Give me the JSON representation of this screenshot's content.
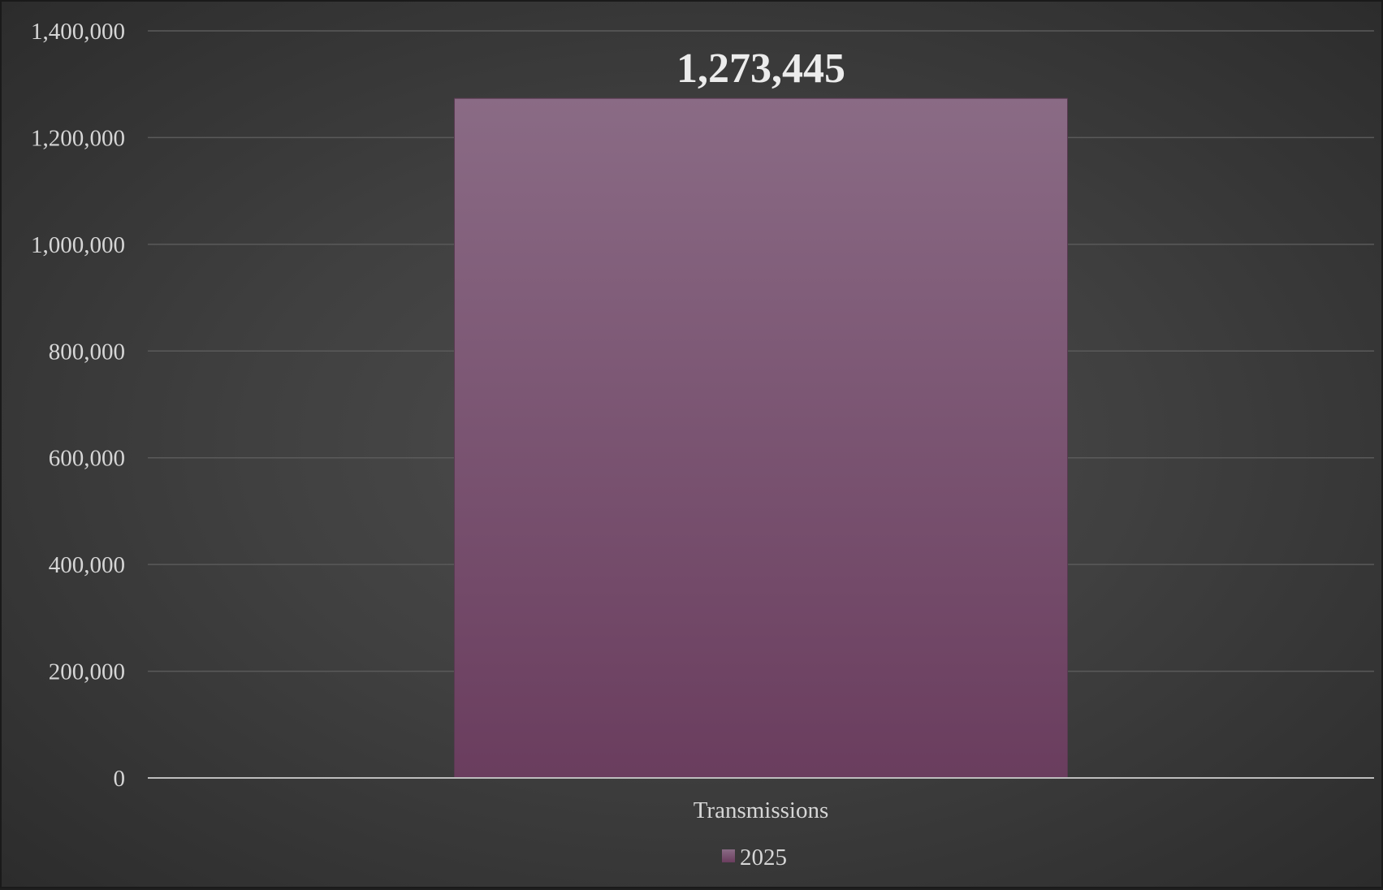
{
  "chart_data": {
    "type": "bar",
    "title": "",
    "xlabel": "",
    "ylabel": "",
    "categories": [
      "Transmissions"
    ],
    "series": [
      {
        "name": "2025",
        "values": [
          1273445
        ],
        "data_labels": [
          "1,273,445"
        ]
      }
    ],
    "ylim": [
      0,
      1400000
    ],
    "yticks": [
      0,
      200000,
      400000,
      600000,
      800000,
      1000000,
      1200000,
      1400000
    ],
    "ytick_labels": [
      "0",
      "200,000",
      "400,000",
      "600,000",
      "800,000",
      "1,000,000",
      "1,200,000",
      "1,400,000"
    ],
    "grid": true,
    "legend_position": "bottom",
    "colors": {
      "bar_top": "#8a6b85",
      "bar_bottom": "#6a3d5e",
      "background": "#444444",
      "gridline": "#5a5a5a",
      "axis": "#bdbdbd",
      "text": "#d6d6d6"
    }
  }
}
